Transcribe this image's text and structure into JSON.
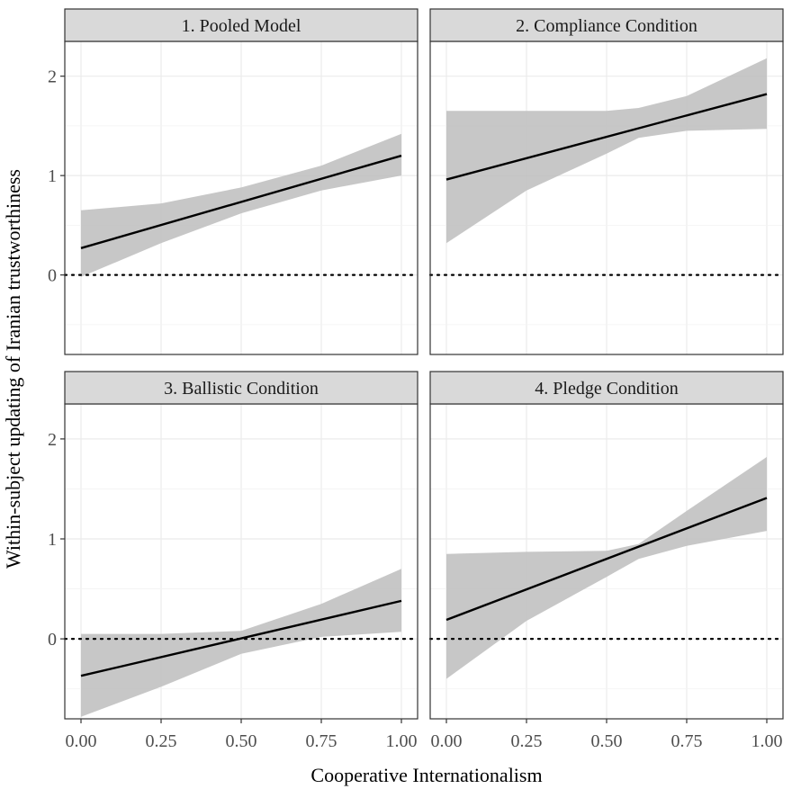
{
  "chart_data": {
    "type": "line",
    "ylabel": "Within-subject updating of Iranian trustworthiness",
    "xlabel": "Cooperative Internationalism",
    "x_ticks": [
      "0.00",
      "0.25",
      "0.50",
      "0.75",
      "1.00"
    ],
    "y_ticks": [
      "0",
      "1",
      "2"
    ],
    "xlim": [
      0,
      1
    ],
    "ylim": [
      -0.8,
      2.35
    ],
    "reference_line_y": 0,
    "grid": true,
    "colors": {
      "line": "#000000",
      "ribbon": "#bdbdbd",
      "strip": "#d9d9d9",
      "panel_border": "#333333",
      "grid": "#ebebeb"
    },
    "panels": [
      {
        "title": "1. Pooled Model",
        "line": {
          "x": [
            0,
            1
          ],
          "y": [
            0.27,
            1.2
          ]
        },
        "ribbon": {
          "x": [
            0,
            0.25,
            0.5,
            0.75,
            1
          ],
          "lower": [
            -0.02,
            0.32,
            0.62,
            0.85,
            1.0
          ],
          "upper": [
            0.65,
            0.72,
            0.88,
            1.1,
            1.42
          ]
        }
      },
      {
        "title": "2. Compliance Condition",
        "line": {
          "x": [
            0,
            1
          ],
          "y": [
            0.96,
            1.82
          ]
        },
        "ribbon": {
          "x": [
            0,
            0.25,
            0.5,
            0.6,
            0.75,
            1
          ],
          "lower": [
            0.32,
            0.85,
            1.22,
            1.38,
            1.45,
            1.47
          ],
          "upper": [
            1.65,
            1.65,
            1.65,
            1.68,
            1.8,
            2.18
          ]
        }
      },
      {
        "title": "3. Ballistic Condition",
        "line": {
          "x": [
            0,
            1
          ],
          "y": [
            -0.37,
            0.38
          ]
        },
        "ribbon": {
          "x": [
            0,
            0.25,
            0.5,
            0.75,
            1
          ],
          "lower": [
            -0.78,
            -0.48,
            -0.15,
            0.02,
            0.07
          ],
          "upper": [
            0.05,
            0.05,
            0.08,
            0.35,
            0.7
          ]
        }
      },
      {
        "title": "4. Pledge Condition",
        "line": {
          "x": [
            0,
            1
          ],
          "y": [
            0.19,
            1.41
          ]
        },
        "ribbon": {
          "x": [
            0,
            0.25,
            0.5,
            0.6,
            0.75,
            1
          ],
          "lower": [
            -0.4,
            0.18,
            0.62,
            0.8,
            0.93,
            1.08
          ],
          "upper": [
            0.85,
            0.87,
            0.88,
            0.95,
            1.28,
            1.82
          ]
        }
      }
    ]
  }
}
